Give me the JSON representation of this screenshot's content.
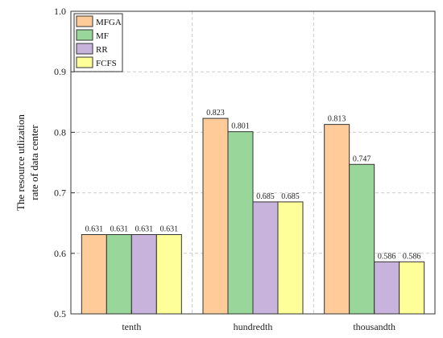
{
  "chart_data": {
    "type": "bar",
    "categories": [
      "tenth",
      "hundredth",
      "thousandth"
    ],
    "series": [
      {
        "name": "MFGA",
        "color": "#FFCC99",
        "values": [
          0.631,
          0.823,
          0.813
        ],
        "labels": [
          "0.631",
          "0.823",
          "0.813"
        ]
      },
      {
        "name": "MF",
        "color": "#99D699",
        "values": [
          0.631,
          0.801,
          0.747
        ],
        "labels": [
          "0.631",
          "0.801",
          "0.747"
        ]
      },
      {
        "name": "RR",
        "color": "#C7B3DB",
        "values": [
          0.631,
          0.685,
          0.586
        ],
        "labels": [
          "0.631",
          "0.685",
          "0.586"
        ]
      },
      {
        "name": "FCFS",
        "color": "#FFFF99",
        "values": [
          0.631,
          0.685,
          0.586
        ],
        "labels": [
          "0.631",
          "0.685",
          "0.586"
        ]
      }
    ],
    "ylabel_lines": [
      "The resource utlization",
      "rate of data center"
    ],
    "xlabel": "",
    "ylim": [
      0.5,
      1.0
    ],
    "yticks": [
      "0.5",
      "0.6",
      "0.7",
      "0.8",
      "0.9",
      "1.0"
    ],
    "grid": true,
    "legend_position": "top-left"
  }
}
